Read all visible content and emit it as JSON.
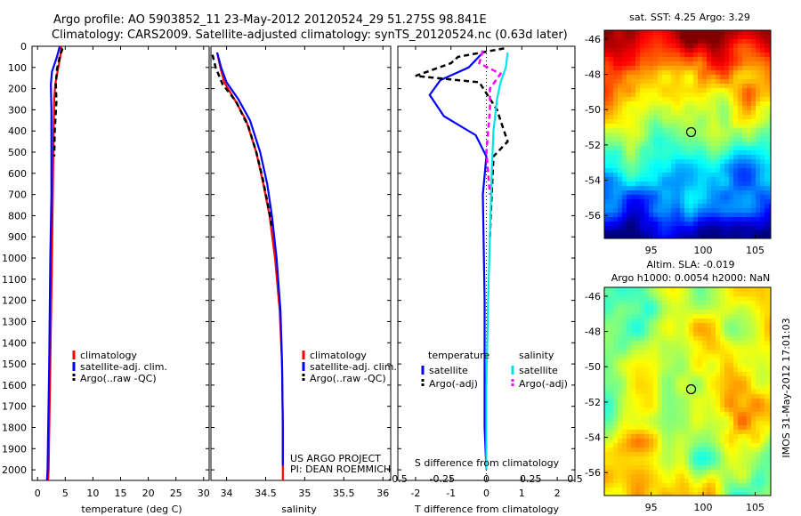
{
  "title_line1": "Argo profile: AO 5903852_11 23-May-2012 20120524_29 51.275S 98.841E",
  "title_line2": "Climatology: CARS2009. Satellite-adjusted climatology: synTS_20120524.nc (0.63d later)",
  "depth_ticks": [
    "0",
    "100",
    "200",
    "300",
    "400",
    "500",
    "600",
    "700",
    "800",
    "900",
    "1000",
    "1100",
    "1200",
    "1300",
    "1400",
    "1500",
    "1600",
    "1700",
    "1800",
    "1900",
    "2000"
  ],
  "colors": {
    "climatology": "#ff0000",
    "satellite": "#0000ff",
    "argo": "#000000",
    "sat_salinity": "#00e5e5",
    "argo_salinity": "#ff00ff"
  },
  "chart_data": [
    {
      "type": "line",
      "panel": "temperature",
      "xlabel": "temperature (deg C)",
      "xlim": [
        -1,
        31
      ],
      "ylim": [
        2050,
        0
      ],
      "y_reversed": true,
      "xtick_labels": [
        "0",
        "5",
        "10",
        "15",
        "20",
        "25",
        "30"
      ],
      "legend": [
        "climatology",
        "satellite-adj. clim.",
        "Argo(..raw -QC)"
      ],
      "series": [
        {
          "name": "climatology",
          "color": "#ff0000",
          "points": [
            [
              4.3,
              0
            ],
            [
              4.1,
              50
            ],
            [
              3.6,
              120
            ],
            [
              3.2,
              180
            ],
            [
              3.0,
              250
            ],
            [
              2.9,
              400
            ],
            [
              2.8,
              600
            ],
            [
              2.6,
              1000
            ],
            [
              2.3,
              1500
            ],
            [
              2.0,
              2000
            ],
            [
              1.9,
              2050
            ]
          ]
        },
        {
          "name": "satellite-adj. clim.",
          "color": "#0000ff",
          "points": [
            [
              4.0,
              0
            ],
            [
              3.5,
              50
            ],
            [
              2.6,
              120
            ],
            [
              2.4,
              180
            ],
            [
              2.5,
              300
            ],
            [
              2.5,
              500
            ],
            [
              2.5,
              700
            ],
            [
              2.3,
              1000
            ],
            [
              2.1,
              1500
            ],
            [
              1.8,
              2000
            ],
            [
              1.7,
              2050
            ]
          ]
        },
        {
          "name": "Argo(..raw -QC)",
          "color": "#000000",
          "dashed": true,
          "points": [
            [
              4.5,
              10
            ],
            [
              4.0,
              50
            ],
            [
              3.5,
              110
            ],
            [
              3.3,
              180
            ],
            [
              3.4,
              260
            ],
            [
              3.1,
              400
            ],
            [
              3.0,
              520
            ]
          ]
        }
      ]
    },
    {
      "type": "line",
      "panel": "salinity",
      "xlabel": "salinity",
      "xlim": [
        33.8,
        36.1
      ],
      "ylim": [
        2050,
        0
      ],
      "y_reversed": true,
      "xtick_labels": [
        "34",
        "34.5",
        "35",
        "35.5",
        "36"
      ],
      "legend": [
        "climatology",
        "satellite-adj. clim.",
        "Argo(..raw -QC)"
      ],
      "annotations": [
        "US ARGO PROJECT",
        "PI: DEAN ROEMMICH"
      ],
      "series": [
        {
          "name": "climatology",
          "color": "#ff0000",
          "points": [
            [
              33.88,
              30
            ],
            [
              33.92,
              100
            ],
            [
              33.97,
              170
            ],
            [
              34.1,
              250
            ],
            [
              34.25,
              350
            ],
            [
              34.38,
              500
            ],
            [
              34.47,
              650
            ],
            [
              34.55,
              800
            ],
            [
              34.62,
              1000
            ],
            [
              34.68,
              1250
            ],
            [
              34.71,
              1500
            ],
            [
              34.72,
              1800
            ],
            [
              34.72,
              2050
            ]
          ]
        },
        {
          "name": "satellite-adj. clim.",
          "color": "#0000ff",
          "points": [
            [
              33.88,
              30
            ],
            [
              33.93,
              100
            ],
            [
              34.0,
              170
            ],
            [
              34.15,
              250
            ],
            [
              34.3,
              350
            ],
            [
              34.43,
              500
            ],
            [
              34.52,
              650
            ],
            [
              34.58,
              800
            ],
            [
              34.64,
              1000
            ],
            [
              34.69,
              1250
            ],
            [
              34.71,
              1500
            ],
            [
              34.72,
              1800
            ],
            [
              34.72,
              1980
            ]
          ]
        },
        {
          "name": "Argo(..raw -QC)",
          "color": "#000000",
          "dashed": true,
          "points": [
            [
              33.82,
              40
            ],
            [
              33.86,
              100
            ],
            [
              33.95,
              180
            ],
            [
              34.12,
              260
            ],
            [
              34.28,
              380
            ],
            [
              34.38,
              500
            ],
            [
              34.46,
              620
            ],
            [
              34.53,
              750
            ],
            [
              34.58,
              850
            ]
          ]
        }
      ]
    },
    {
      "type": "line",
      "panel": "difference",
      "xlabel": "T difference from climatology",
      "xlabel_top": "S difference from climatology",
      "xlim": [
        -2.5,
        2.5
      ],
      "ylim": [
        2050,
        0
      ],
      "y_reversed": true,
      "xtick_labels": [
        "-2",
        "-1",
        "0",
        "1",
        "2"
      ],
      "s_tick_labels": [
        "-0.5",
        "-0.25",
        "0",
        "0.25",
        "0.5"
      ],
      "legend_headers": [
        "temperature",
        "salinity"
      ],
      "legend": [
        "satellite",
        "Argo(-adj)",
        "satellite",
        "Argo(-adj)"
      ],
      "series": [
        {
          "name": "satellite",
          "color": "#0000ff",
          "points": [
            [
              -0.1,
              30
            ],
            [
              -0.5,
              100
            ],
            [
              -1.3,
              160
            ],
            [
              -1.6,
              230
            ],
            [
              -1.2,
              330
            ],
            [
              -0.3,
              420
            ],
            [
              0.0,
              520
            ],
            [
              -0.1,
              700
            ],
            [
              -0.05,
              1200
            ],
            [
              -0.05,
              1800
            ],
            [
              0.0,
              2000
            ]
          ]
        },
        {
          "name": "Argo(-adj)",
          "color": "#000000",
          "dashed": true,
          "points": [
            [
              0.5,
              10
            ],
            [
              -0.8,
              50
            ],
            [
              -1.0,
              80
            ],
            [
              -2.0,
              140
            ],
            [
              -0.2,
              170
            ],
            [
              0.3,
              300
            ],
            [
              0.5,
              400
            ],
            [
              0.6,
              450
            ],
            [
              0.2,
              520
            ],
            [
              0.15,
              700
            ],
            [
              0.1,
              900
            ]
          ]
        },
        {
          "name": "satellite",
          "color": "#00e5e5",
          "points": [
            [
              0.6,
              30
            ],
            [
              0.55,
              100
            ],
            [
              0.4,
              170
            ],
            [
              0.3,
              250
            ],
            [
              0.2,
              400
            ],
            [
              0.15,
              600
            ],
            [
              0.1,
              900
            ],
            [
              0.05,
              1200
            ],
            [
              0.0,
              1600
            ],
            [
              0.0,
              2000
            ]
          ]
        },
        {
          "name": "Argo(-adj)",
          "color": "#ff00ff",
          "dashed": true,
          "points": [
            [
              -0.1,
              20
            ],
            [
              -0.2,
              80
            ],
            [
              0.4,
              130
            ],
            [
              0.1,
              200
            ],
            [
              0.1,
              300
            ],
            [
              0.0,
              500
            ],
            [
              0.1,
              700
            ]
          ]
        }
      ]
    },
    {
      "type": "heatmap",
      "panel": "sst_map",
      "title": "sat. SST: 4.25 Argo: 3.29",
      "xlim": [
        90.5,
        106.5
      ],
      "ylim": [
        -57.3,
        -45.5
      ],
      "xtick_labels": [
        "95",
        "100",
        "105"
      ],
      "ytick_labels": [
        "-46",
        "-48",
        "-50",
        "-52",
        "-54",
        "-56"
      ],
      "marker": {
        "lon": 98.841,
        "lat": -51.275
      }
    },
    {
      "type": "heatmap",
      "panel": "sla_map",
      "title": "Altim. SLA: -0.019",
      "subtitle": "Argo h1000: 0.0054 h2000: NaN",
      "side_label": "IMOS 31-May-2012 17:01:03",
      "xlim": [
        90.5,
        106.5
      ],
      "ylim": [
        -57.3,
        -45.5
      ],
      "xtick_labels": [
        "95",
        "100",
        "105"
      ],
      "ytick_labels": [
        "-46",
        "-48",
        "-50",
        "-52",
        "-54",
        "-56"
      ],
      "marker": {
        "lon": 98.841,
        "lat": -51.275
      }
    }
  ]
}
